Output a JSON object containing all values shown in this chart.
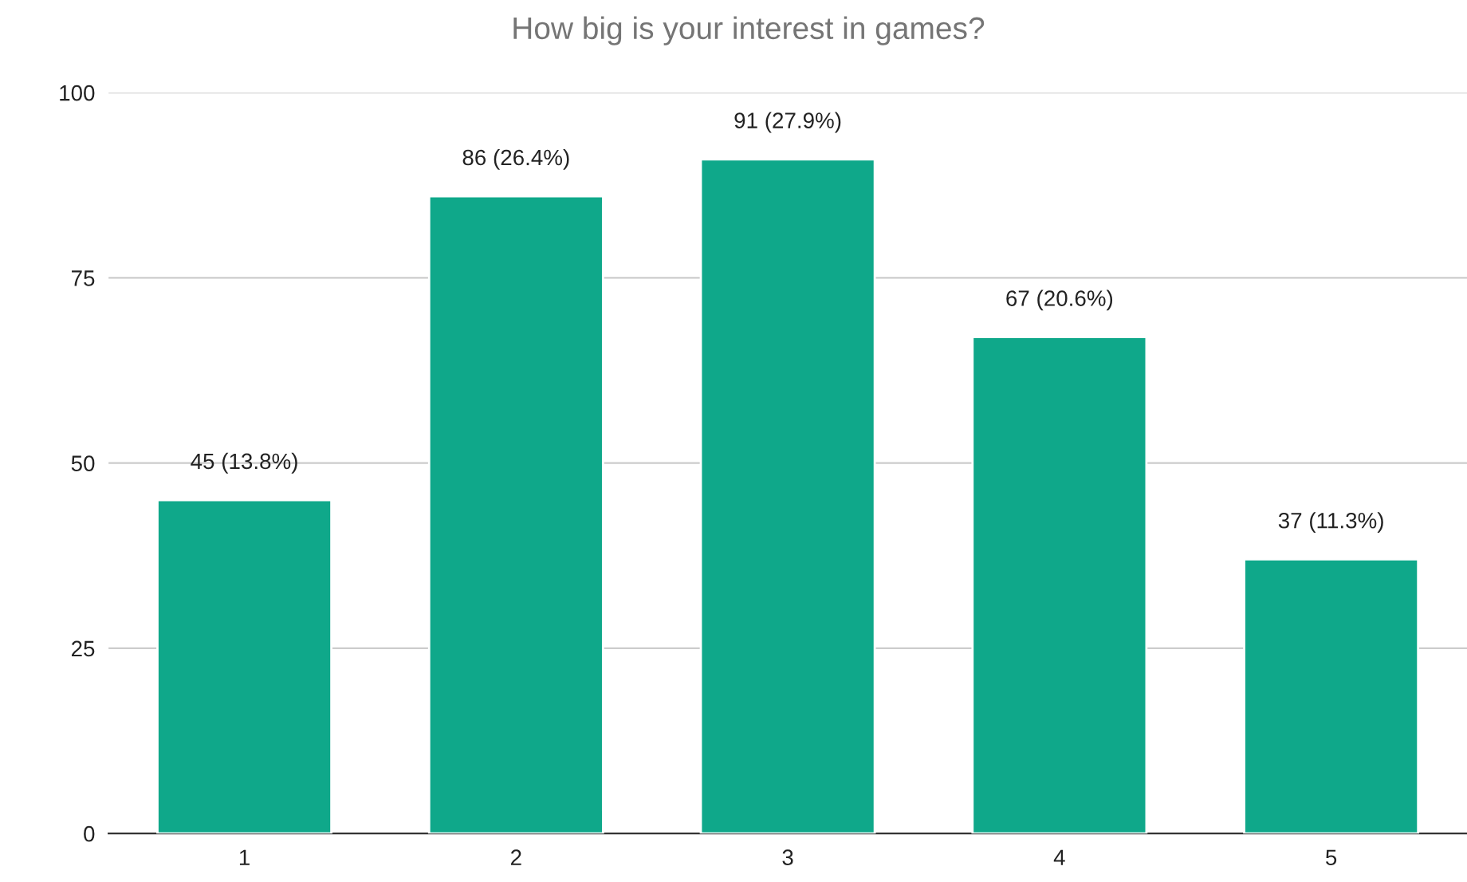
{
  "chart_data": {
    "type": "bar",
    "title": "How big is your interest in games?",
    "categories": [
      "1",
      "2",
      "3",
      "4",
      "5"
    ],
    "values": [
      45,
      86,
      91,
      67,
      37
    ],
    "value_labels": [
      "45 (13.8%)",
      "86 (26.4%)",
      "91 (27.9%)",
      "67 (20.6%)",
      "37 (11.3%)"
    ],
    "color": "#0fa88a",
    "ylim": [
      0,
      100
    ],
    "yticks": [
      0,
      25,
      50,
      75,
      100
    ],
    "grid": "y",
    "legend": false
  }
}
